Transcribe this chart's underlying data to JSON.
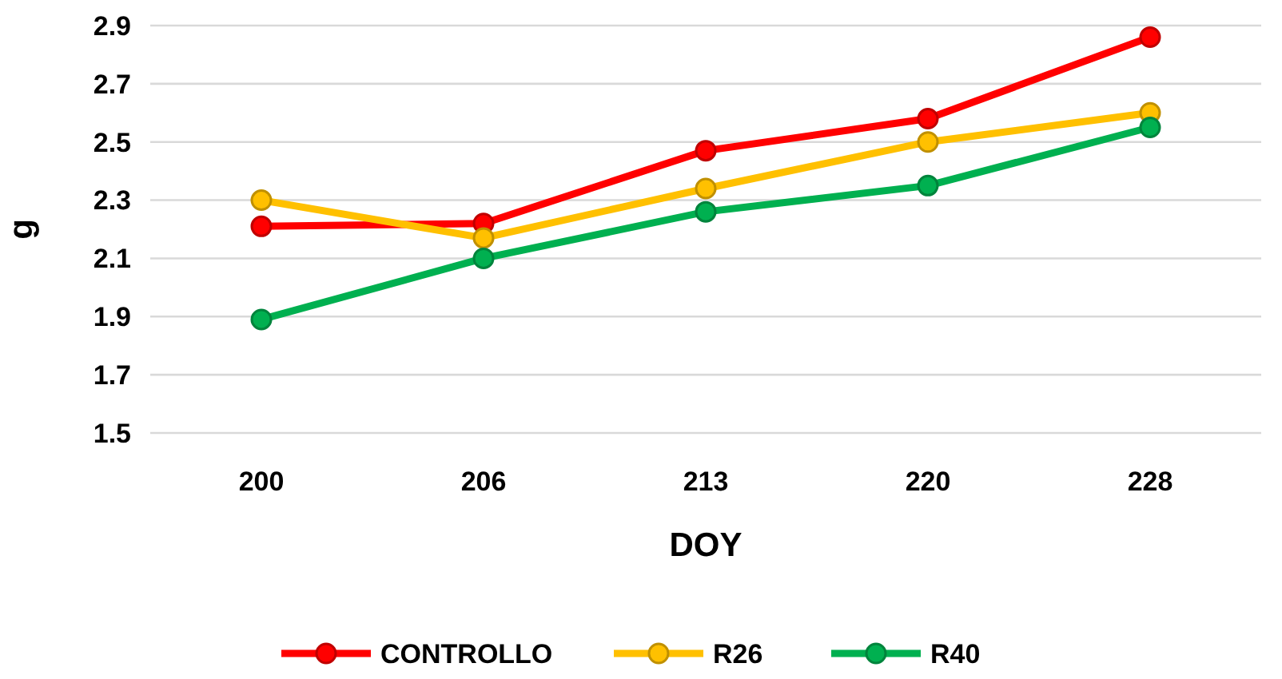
{
  "chart_data": {
    "type": "line",
    "xlabel": "DOY",
    "ylabel": "g",
    "categories": [
      "200",
      "206",
      "213",
      "220",
      "228"
    ],
    "series": [
      {
        "name": "CONTROLLO",
        "color": "#ff0000",
        "values": [
          2.21,
          2.22,
          2.47,
          2.58,
          2.86
        ]
      },
      {
        "name": "R26",
        "color": "#ffc000",
        "values": [
          2.3,
          2.17,
          2.34,
          2.5,
          2.6
        ]
      },
      {
        "name": "R40",
        "color": "#00b050",
        "values": [
          1.89,
          2.1,
          2.26,
          2.35,
          2.55
        ]
      }
    ],
    "ylim": [
      1.5,
      2.9
    ],
    "yticks": [
      1.5,
      1.7,
      1.9,
      2.1,
      2.3,
      2.5,
      2.7,
      2.9
    ],
    "grid": "y",
    "legend": "bottom",
    "marker": "circle",
    "line_style": "solid"
  }
}
